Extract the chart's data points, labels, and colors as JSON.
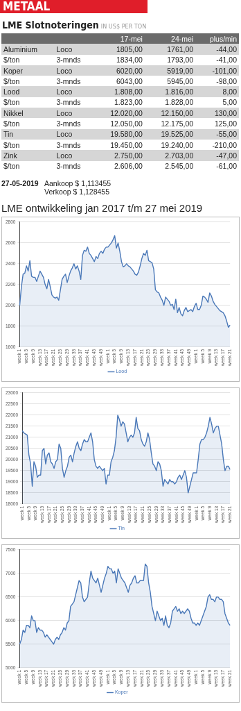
{
  "chart_data": [
    {
      "type": "other",
      "title": "LME Slotnoteringen",
      "subtitle": "IN US$ PER TON",
      "categories": [
        null,
        null,
        "17-mei",
        "24-mei",
        "plus/min"
      ],
      "cell_labels": [
        [
          "Aluminium",
          "Loco",
          "1805,00",
          "1761,00",
          "-44,00"
        ],
        [
          "$/ton",
          "3-mnds",
          "1834,00",
          "1793,00",
          "-41,00"
        ],
        [
          "Koper",
          "Loco",
          "6020,00",
          "5919,00",
          "-101,00"
        ],
        [
          "$/ton",
          "3-mnds",
          "6043,00",
          "5945,00",
          "-98,00"
        ],
        [
          "Lood",
          "Loco",
          "1.808,00",
          "1.816,00",
          "8,00"
        ],
        [
          "$/ton",
          "3-mnds",
          "1.823,00",
          "1.828,00",
          "5,00"
        ],
        [
          "Nikkel",
          "Loco",
          "12.020,00",
          "12.150,00",
          "130,00"
        ],
        [
          "$/ton",
          "3-mnds",
          "12.050,00",
          "12.175,00",
          "125,00"
        ],
        [
          "Tin",
          "Loco",
          "19.580,00",
          "19.525,00",
          "-55,00"
        ],
        [
          "$/ton",
          "3-mnds",
          "19.450,00",
          "19.240,00",
          "-210,00"
        ],
        [
          "Zink",
          "Loco",
          "2.750,00",
          "2.703,00",
          "-47,00"
        ],
        [
          "$/ton",
          "3-mnds",
          "2.606,00",
          "2.545,00",
          "-61,00"
        ]
      ],
      "annotations": [
        "METAAL",
        "27-05-2019",
        "Aankoop $  1,113455",
        "Verkoop $  1,128455",
        "LME ontwikkeling jan 2017 t/m 27 mei 2019"
      ]
    },
    {
      "type": "area",
      "categories": [
        "week 1",
        null,
        null,
        null,
        "week 5",
        null,
        null,
        null,
        "week 9",
        null,
        null,
        null,
        "week 13",
        null,
        null,
        null,
        "week 17",
        null,
        null,
        null,
        "week 21",
        null,
        null,
        null,
        "week 25",
        null,
        null,
        null,
        "week 29",
        null,
        null,
        null,
        "week 33",
        null,
        null,
        null,
        "week 37",
        null,
        null,
        null,
        "week 41",
        null,
        null,
        null,
        "week 45",
        null,
        null,
        null,
        "week 49",
        null,
        null,
        null,
        "week 1",
        null,
        null,
        null,
        "week 5",
        null,
        null,
        null,
        "week 9",
        null,
        null,
        null,
        "week 13",
        null,
        null,
        null,
        "week 17",
        null,
        null,
        null,
        "week 21",
        null,
        null,
        null,
        "week 25",
        null,
        null,
        null,
        "week 29",
        null,
        null,
        null,
        "week 33",
        null,
        null,
        null,
        "week 37",
        null,
        null,
        null,
        "week 41",
        null,
        null,
        null,
        "week 45",
        null,
        null,
        null,
        "week 49",
        null,
        null,
        null,
        "week 1",
        null,
        null,
        null,
        "week 5",
        null,
        null,
        null,
        "week 9",
        null,
        null,
        null,
        "week 13",
        null,
        null,
        null,
        "week 17",
        null,
        null,
        null,
        "week 21"
      ],
      "series": [
        {
          "name": "Lood",
          "color": "#4a78b8",
          "values": [
            2000,
            2180,
            2300,
            2310,
            2380,
            2330,
            2430,
            2280,
            2270,
            2270,
            2230,
            2280,
            2330,
            2300,
            2270,
            2200,
            2160,
            2250,
            2180,
            2100,
            2080,
            2070,
            2080,
            2050,
            2150,
            2250,
            2280,
            2300,
            2220,
            2280,
            2330,
            2360,
            2400,
            2350,
            2380,
            2330,
            2250,
            2480,
            2530,
            2520,
            2560,
            2500,
            2480,
            2450,
            2420,
            2470,
            2450,
            2500,
            2520,
            2500,
            2540,
            2560,
            2560,
            2580,
            2600,
            2630,
            2670,
            2550,
            2600,
            2520,
            2420,
            2370,
            2380,
            2400,
            2380,
            2370,
            2350,
            2330,
            2300,
            2290,
            2320,
            2380,
            2450,
            2500,
            2480,
            2530,
            2430,
            2420,
            2410,
            2350,
            2150,
            2130,
            2120,
            2080,
            2050,
            2000,
            2080,
            2060,
            2040,
            2000,
            2010,
            1960,
            2060,
            1930,
            1980,
            1920,
            1900,
            1950,
            1980,
            1940,
            1950,
            1960,
            1940,
            1990,
            2020,
            1960,
            1960,
            2000,
            2090,
            2080,
            2060,
            2030,
            2120,
            2090,
            2040,
            2010,
            1990,
            1970,
            1950,
            1940,
            1930,
            1900,
            1850,
            1790,
            1810
          ]
        }
      ],
      "ylim": [
        1600,
        2800
      ],
      "yticks": [
        1600,
        1800,
        2000,
        2200,
        2400,
        2600,
        2800
      ],
      "grid": "y",
      "legend": "bottom"
    },
    {
      "type": "area",
      "categories": [
        "week 1",
        null,
        null,
        null,
        "week 5",
        null,
        null,
        null,
        "week 9",
        null,
        null,
        null,
        "week 13",
        null,
        null,
        null,
        "week 17",
        null,
        null,
        null,
        "week 21",
        null,
        null,
        null,
        "week 25",
        null,
        null,
        null,
        "week 29",
        null,
        null,
        null,
        "week 33",
        null,
        null,
        null,
        "week 37",
        null,
        null,
        null,
        "week 41",
        null,
        null,
        null,
        "week 45",
        null,
        null,
        null,
        "week 49",
        null,
        null,
        null,
        "week 1",
        null,
        null,
        null,
        "week 5",
        null,
        null,
        null,
        "week 9",
        null,
        null,
        null,
        "week 13",
        null,
        null,
        null,
        "week 17",
        null,
        null,
        null,
        "week 21",
        null,
        null,
        null,
        "week 25",
        null,
        null,
        null,
        "week 29",
        null,
        null,
        null,
        "week 33",
        null,
        null,
        null,
        "week 37",
        null,
        null,
        null,
        "week 41",
        null,
        null,
        null,
        "week 45",
        null,
        null,
        null,
        "week 49",
        null,
        null,
        null,
        "week 1",
        null,
        null,
        null,
        "week 5",
        null,
        null,
        null,
        "week 9",
        null,
        null,
        null,
        "week 13",
        null,
        null,
        null,
        "week 17",
        null,
        null,
        null,
        "week 21"
      ],
      "series": [
        {
          "name": "Tin",
          "color": "#4a78b8",
          "values": [
            21300,
            21200,
            21150,
            21100,
            20200,
            19800,
            18800,
            19900,
            19700,
            19200,
            19300,
            19300,
            20400,
            20500,
            19800,
            20200,
            20300,
            19900,
            19800,
            19600,
            19900,
            20000,
            20700,
            20500,
            19600,
            19200,
            19500,
            19700,
            20100,
            20200,
            19900,
            20300,
            20600,
            20800,
            20500,
            20400,
            20700,
            20900,
            20800,
            20800,
            21000,
            21200,
            20800,
            20000,
            19700,
            19600,
            19700,
            19600,
            19500,
            19600,
            18900,
            19300,
            19300,
            19900,
            20100,
            20400,
            21000,
            22000,
            21800,
            21500,
            21700,
            21600,
            21200,
            20800,
            21000,
            21100,
            21000,
            21200,
            21900,
            21400,
            21300,
            20900,
            20700,
            20600,
            20800,
            21200,
            20900,
            20300,
            19800,
            19700,
            19500,
            19900,
            19800,
            19500,
            18800,
            19100,
            19000,
            18900,
            19100,
            19000,
            19000,
            18900,
            19000,
            19200,
            19300,
            19100,
            19300,
            19500,
            19200,
            18500,
            18800,
            19100,
            19400,
            19400,
            19400,
            20000,
            20700,
            20900,
            20900,
            21000,
            21200,
            21500,
            21900,
            21600,
            21200,
            21400,
            21500,
            21500,
            21100,
            20700,
            20000,
            19500,
            19700,
            19700,
            19550
          ]
        }
      ],
      "ylim": [
        18000,
        23000
      ],
      "yticks": [
        18000,
        18500,
        19000,
        19500,
        20000,
        20500,
        21000,
        21500,
        22000,
        22500,
        23000
      ],
      "grid": "y",
      "legend": "bottom"
    },
    {
      "type": "area",
      "categories": [
        "week 1",
        null,
        null,
        null,
        "week 5",
        null,
        null,
        null,
        "week 9",
        null,
        null,
        null,
        "week 13",
        null,
        null,
        null,
        "week 17",
        null,
        null,
        null,
        "week 21",
        null,
        null,
        null,
        "week 25",
        null,
        null,
        null,
        "week 29",
        null,
        null,
        null,
        "week 33",
        null,
        null,
        null,
        "week 37",
        null,
        null,
        null,
        "week 41",
        null,
        null,
        null,
        "week 45",
        null,
        null,
        null,
        "week 49",
        null,
        null,
        null,
        "week 1",
        null,
        null,
        null,
        "week 5",
        null,
        null,
        null,
        "week 9",
        null,
        null,
        null,
        "week 13",
        null,
        null,
        null,
        "week 17",
        null,
        null,
        null,
        "week 21",
        null,
        null,
        null,
        "week 25",
        null,
        null,
        null,
        "week 29",
        null,
        null,
        null,
        "week 33",
        null,
        null,
        null,
        "week 37",
        null,
        null,
        null,
        "week 41",
        null,
        null,
        null,
        "week 45",
        null,
        null,
        null,
        "week 49",
        null,
        null,
        null,
        "week 1",
        null,
        null,
        null,
        "week 5",
        null,
        null,
        null,
        "week 9",
        null,
        null,
        null,
        "week 13",
        null,
        null,
        null,
        "week 17",
        null,
        null,
        null,
        "week 21"
      ],
      "series": [
        {
          "name": "Koper",
          "color": "#4a78b8",
          "values": [
            5500,
            5600,
            5800,
            5750,
            5900,
            5900,
            5850,
            6100,
            6000,
            6000,
            5750,
            5850,
            5800,
            5800,
            5750,
            5650,
            5700,
            5650,
            5600,
            5550,
            5500,
            5600,
            5650,
            5600,
            5700,
            5750,
            5850,
            5800,
            5950,
            6000,
            6300,
            6350,
            6400,
            6550,
            6700,
            6850,
            6800,
            6500,
            6400,
            6450,
            6500,
            6800,
            7050,
            6900,
            6850,
            6800,
            6900,
            6750,
            6600,
            6750,
            6900,
            7000,
            7150,
            7100,
            7100,
            7000,
            7050,
            6800,
            7100,
            7000,
            6900,
            6850,
            6800,
            6700,
            6600,
            6750,
            6800,
            6900,
            6950,
            6800,
            6800,
            6850,
            6850,
            6850,
            7200,
            7150,
            6800,
            6600,
            6300,
            6150,
            6000,
            6200,
            6100,
            6000,
            6050,
            5900,
            6100,
            5900,
            5850,
            5950,
            6200,
            6250,
            6300,
            6200,
            6250,
            6150,
            6200,
            6150,
            6200,
            6250,
            6200,
            6050,
            5950,
            5950,
            5900,
            5950,
            5900,
            6000,
            6100,
            6200,
            6300,
            6500,
            6550,
            6450,
            6450,
            6400,
            6500,
            6500,
            6450,
            6450,
            6400,
            6150,
            6050,
            5950,
            5900
          ]
        }
      ],
      "ylim": [
        5000,
        7500
      ],
      "yticks": [
        5000,
        5500,
        6000,
        6500,
        7000,
        7500
      ],
      "grid": "y",
      "legend": "bottom"
    }
  ]
}
